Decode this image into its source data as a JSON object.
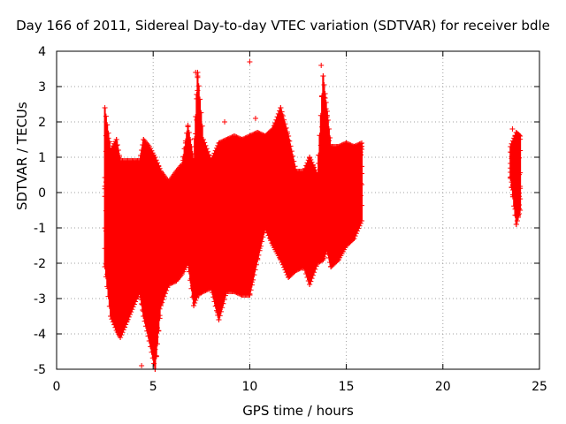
{
  "chart_data": {
    "type": "scatter",
    "title": "Day 166 of 2011, Sidereal Day-to-day VTEC variation (SDTVAR) for receiver bdle",
    "xlabel": "GPS time / hours",
    "ylabel": "SDTVAR / TECUs",
    "xlim": [
      0,
      25
    ],
    "ylim": [
      -5,
      4
    ],
    "xticks": [
      "0",
      "5",
      "10",
      "15",
      "20",
      "25"
    ],
    "yticks": [
      "4",
      "3",
      "2",
      "1",
      "0",
      "-1",
      "-2",
      "-3",
      "-4",
      "-5"
    ],
    "grid": true,
    "marker": "+",
    "color": "#ff0000",
    "series": [
      {
        "envelope": [
          [
            2.5,
            2.4,
            -2.1
          ],
          [
            2.8,
            1.2,
            -3.5
          ],
          [
            3.1,
            1.5,
            -3.9
          ],
          [
            3.3,
            0.9,
            -4.1
          ],
          [
            4.3,
            0.9,
            -2.8
          ],
          [
            4.5,
            1.5,
            -3.5
          ],
          [
            4.8,
            1.3,
            -4.2
          ],
          [
            5.1,
            1.0,
            -5.0
          ],
          [
            5.4,
            0.6,
            -3.2
          ],
          [
            5.8,
            0.3,
            -2.6
          ],
          [
            6.2,
            0.6,
            -2.5
          ],
          [
            6.5,
            0.8,
            -2.3
          ],
          [
            6.8,
            1.9,
            -2.0
          ],
          [
            7.1,
            0.9,
            -3.2
          ],
          [
            7.3,
            3.4,
            -2.9
          ],
          [
            7.6,
            1.5,
            -2.8
          ],
          [
            8.0,
            0.9,
            -2.7
          ],
          [
            8.4,
            1.4,
            -3.6
          ],
          [
            8.8,
            1.5,
            -2.8
          ],
          [
            9.2,
            1.6,
            -2.8
          ],
          [
            9.6,
            1.5,
            -2.9
          ],
          [
            10.0,
            1.6,
            -2.9
          ],
          [
            10.4,
            1.7,
            -1.9
          ],
          [
            10.8,
            1.6,
            -1.0
          ],
          [
            11.2,
            1.8,
            -1.5
          ],
          [
            11.6,
            2.4,
            -1.9
          ],
          [
            12.0,
            1.6,
            -2.4
          ],
          [
            12.4,
            0.6,
            -2.2
          ],
          [
            12.8,
            0.6,
            -2.1
          ],
          [
            13.1,
            1.0,
            -2.6
          ],
          [
            13.5,
            0.5,
            -2.0
          ],
          [
            13.8,
            3.3,
            -1.9
          ],
          [
            14.0,
            2.3,
            -1.6
          ],
          [
            14.2,
            1.3,
            -2.1
          ],
          [
            14.6,
            1.3,
            -1.9
          ],
          [
            15.0,
            1.4,
            -1.5
          ],
          [
            15.4,
            1.3,
            -1.3
          ],
          [
            15.8,
            1.4,
            -0.8
          ],
          [
            23.5,
            1.3,
            0.4
          ],
          [
            23.8,
            1.7,
            -0.9
          ],
          [
            24.0,
            1.6,
            -0.5
          ]
        ]
      }
    ],
    "outliers": [
      [
        10.0,
        3.7
      ],
      [
        13.7,
        3.6
      ],
      [
        10.3,
        2.1
      ],
      [
        8.7,
        2.0
      ],
      [
        4.4,
        -4.9
      ],
      [
        23.6,
        1.8
      ],
      [
        13.1,
        0.9
      ],
      [
        7.2,
        3.4
      ]
    ]
  }
}
